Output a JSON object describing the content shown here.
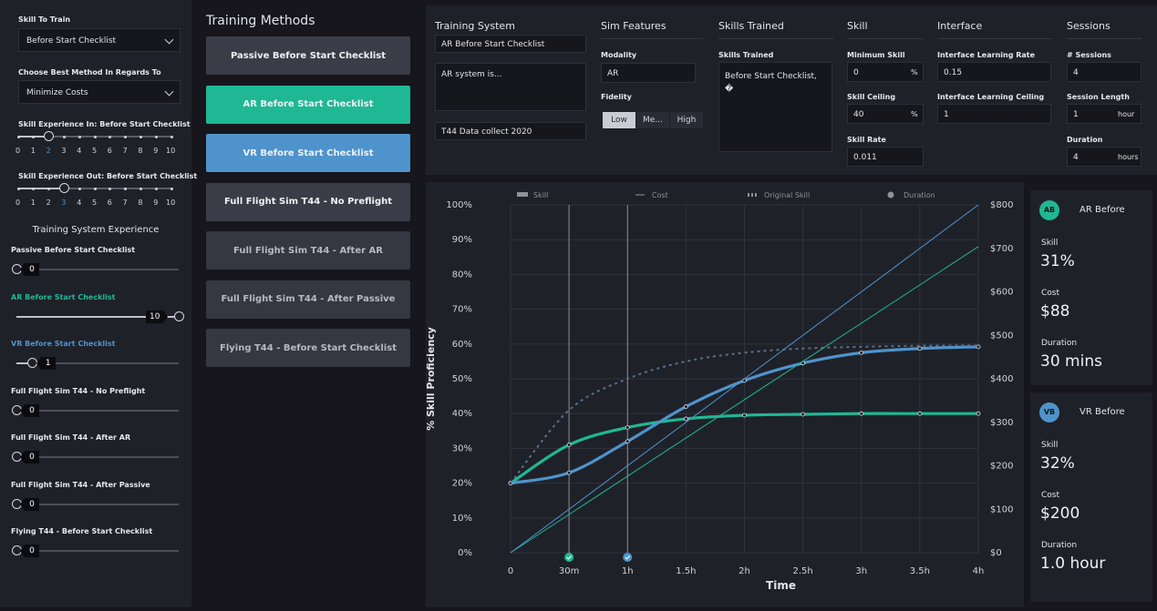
{
  "left": {
    "skill_to_train_label": "Skill To Train",
    "skill_to_train_value": "Before Start Checklist",
    "best_method_label": "Choose Best Method In Regards To",
    "best_method_value": "Minimize Costs",
    "exp_in_label": "Skill Experience In: Before Start Checklist",
    "exp_out_label": "Skill Experience Out: Before Start Checklist",
    "scale": [
      "0",
      "1",
      "2",
      "3",
      "4",
      "5",
      "6",
      "7",
      "8",
      "9",
      "10"
    ],
    "exp_in_value": 2,
    "exp_out_value": 3,
    "tse_title": "Training System Experience",
    "tse_items": [
      {
        "label": "Passive Before Start Checklist",
        "value": "0"
      },
      {
        "label": "AR Before Start Checklist",
        "value": "10"
      },
      {
        "label": "VR Before Start Checklist",
        "value": "1"
      },
      {
        "label": "Full Flight Sim T44 - No Preflight",
        "value": "0"
      },
      {
        "label": "Full Flight Sim T44 - After AR",
        "value": "0"
      },
      {
        "label": "Full Flight Sim T44 - After Passive",
        "value": "0"
      },
      {
        "label": "Flying T44 - Before Start Checklist",
        "value": "0"
      }
    ]
  },
  "methods": {
    "title": "Training Methods",
    "items": [
      "Passive Before Start Checklist",
      "AR Before Start Checklist",
      "VR Before Start Checklist",
      "Full Flight Sim T44 - No Preflight",
      "Full Flight Sim T44 - After AR",
      "Full Flight Sim T44 - After Passive",
      "Flying T44 - Before Start Checklist"
    ]
  },
  "config": {
    "training_system": {
      "header": "Training System",
      "name": "AR Before Start Checklist",
      "description": "AR system is...",
      "source": "T44 Data collect 2020"
    },
    "sim_features": {
      "header": "Sim Features",
      "modality_label": "Modality",
      "modality_value": "AR",
      "fidelity_label": "Fidelity",
      "fidelity_options": [
        "Low",
        "Me...",
        "High"
      ]
    },
    "skills_trained": {
      "header": "Skills Trained",
      "label": "Skills Trained",
      "value": "Before Start Checklist,",
      "value2": "�"
    },
    "skill": {
      "header": "Skill",
      "min_label": "Minimum Skill",
      "min_value": "0",
      "ceiling_label": "Skill Ceiling",
      "ceiling_value": "40",
      "rate_label": "Skill Rate",
      "rate_value": "0.011",
      "pct": "%"
    },
    "interface": {
      "header": "Interface",
      "rate_label": "Interface Learning Rate",
      "rate_value": "0.15",
      "ceiling_label": "Interface Learning Ceiling",
      "ceiling_value": "1"
    },
    "sessions": {
      "header": "Sessions",
      "count_label": "# Sessions",
      "count_value": "4",
      "length_label": "Session Length",
      "length_value": "1",
      "length_unit": "hour",
      "duration_label": "Duration",
      "duration_value": "4",
      "duration_unit": "hours"
    }
  },
  "cards": [
    {
      "abbr": "AB",
      "name": "AR Before",
      "skill_label": "Skill",
      "skill_value": "31%",
      "cost_label": "Cost",
      "cost_value": "$88",
      "duration_label": "Duration",
      "duration_value": "30 mins",
      "color": "#1fb894"
    },
    {
      "abbr": "VB",
      "name": "VR Before",
      "skill_label": "Skill",
      "skill_value": "32%",
      "cost_label": "Cost",
      "cost_value": "$200",
      "duration_label": "Duration",
      "duration_value": "1.0 hour",
      "color": "#4f93cc"
    }
  ],
  "chart_data": {
    "type": "line",
    "xlabel": "Time",
    "ylabel": "% Skill Proficiency",
    "x_ticks": [
      "0",
      "30m",
      "1h",
      "1.5h",
      "2h",
      "2.5h",
      "3h",
      "3.5h",
      "4h"
    ],
    "x": [
      0,
      0.5,
      1,
      1.5,
      2,
      2.5,
      3,
      3.5,
      4
    ],
    "ylim": [
      0,
      100
    ],
    "y_ticks": [
      "0%",
      "10%",
      "20%",
      "30%",
      "40%",
      "50%",
      "60%",
      "70%",
      "80%",
      "90%",
      "100%"
    ],
    "y2lim": [
      0,
      800
    ],
    "y2_ticks": [
      "$0",
      "$100",
      "$200",
      "$300",
      "$400",
      "$500",
      "$600",
      "$700",
      "$800"
    ],
    "legend": [
      "Skill",
      "Cost",
      "Original Skill",
      "Duration"
    ],
    "duration_markers": [
      0.5,
      1
    ],
    "series": [
      {
        "name": "AR Skill",
        "axis": "left",
        "color": "#1fb894",
        "values": [
          20,
          31,
          36,
          38.5,
          39.5,
          39.8,
          40,
          40,
          40
        ]
      },
      {
        "name": "VR Skill",
        "axis": "left",
        "color": "#4f93cc",
        "values": [
          20,
          23,
          32,
          42,
          49.5,
          54.5,
          57.5,
          58.7,
          59.2
        ]
      },
      {
        "name": "Original Skill",
        "axis": "left",
        "color": "#58708a",
        "dashed": true,
        "values": [
          20,
          41,
          50,
          55,
          57.5,
          58.7,
          59.2,
          59.5,
          59.6
        ]
      },
      {
        "name": "AR Cost",
        "axis": "right",
        "color": "#1fb894",
        "values": [
          0,
          88,
          176,
          264,
          352,
          440,
          528,
          616,
          704
        ]
      },
      {
        "name": "VR Cost",
        "axis": "right",
        "color": "#4f93cc",
        "values": [
          0,
          100,
          200,
          300,
          400,
          500,
          600,
          700,
          800
        ]
      }
    ]
  },
  "colors": {
    "ar": "#1fb894",
    "vr": "#4f93cc",
    "bg": "#16161c",
    "panel": "#1f2129"
  }
}
